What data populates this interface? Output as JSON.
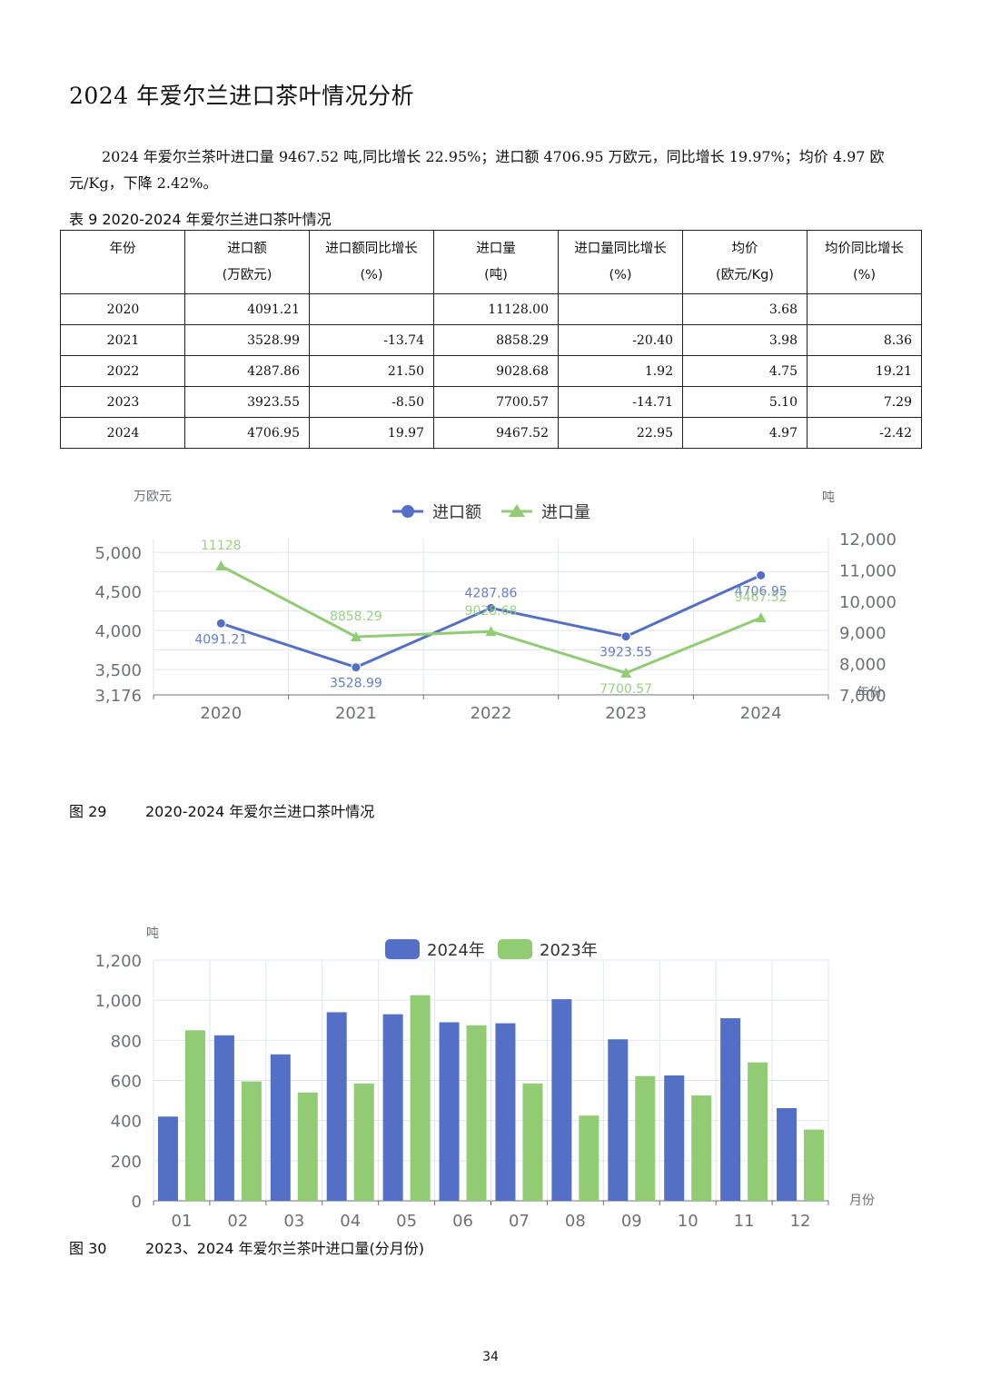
{
  "title": "2024 年爱尔兰进口茶叶情况分析",
  "paragraph": "2024 年爱尔兰茶叶进口量 9467.52 吨,同比增长 22.95%；进口额 4706.95 万欧元，同比增长 19.97%；均价 4.97 欧元/Kg，下降 2.42%。",
  "table": {
    "caption": "表 9  2020-2024 年爱尔兰进口茶叶情况",
    "headers": [
      {
        "line1": "年份",
        "line2": ""
      },
      {
        "line1": "进口额",
        "line2": "(万欧元)"
      },
      {
        "line1": "进口额同比增长",
        "line2": "(%)"
      },
      {
        "line1": "进口量",
        "line2": "(吨)"
      },
      {
        "line1": "进口量同比增长",
        "line2": "(%)"
      },
      {
        "line1": "均价",
        "line2": "(欧元/Kg)"
      },
      {
        "line1": "均价同比增长",
        "line2": "(%)"
      }
    ],
    "rows": [
      [
        "2020",
        "4091.21",
        "",
        "11128.00",
        "",
        "3.68",
        ""
      ],
      [
        "2021",
        "3528.99",
        "-13.74",
        "8858.29",
        "-20.40",
        "3.98",
        "8.36"
      ],
      [
        "2022",
        "4287.86",
        "21.50",
        "9028.68",
        "1.92",
        "4.75",
        "19.21"
      ],
      [
        "2023",
        "3923.55",
        "-8.50",
        "7700.57",
        "-14.71",
        "5.10",
        "7.29"
      ],
      [
        "2024",
        "4706.95",
        "19.97",
        "9467.52",
        "22.95",
        "4.97",
        "-2.42"
      ]
    ]
  },
  "chart_data": [
    {
      "type": "line",
      "x": [
        "2020",
        "2021",
        "2022",
        "2023",
        "2024"
      ],
      "y_left_label": "万欧元",
      "y_right_label": "吨",
      "x_axis_unit": "年份",
      "left_ticks": [
        "5,000",
        "4,500",
        "4,000",
        "3,500",
        "3,176"
      ],
      "right_ticks": [
        "12,000",
        "11,000",
        "10,000",
        "9,000",
        "8,000",
        "7,000"
      ],
      "ylim_left": [
        3176,
        5176
      ],
      "ylim_right": [
        7000,
        12000
      ],
      "series": [
        {
          "name": "进口额",
          "axis": "left",
          "color": "#5470c6",
          "values": [
            4091.21,
            3528.99,
            4287.86,
            3923.55,
            4706.95
          ],
          "labels": [
            "4091.21",
            "3528.99",
            "4287.86",
            "3923.55",
            "4706.95"
          ]
        },
        {
          "name": "进口量",
          "axis": "right",
          "color": "#91cc75",
          "values": [
            11128,
            8858.29,
            9028.68,
            7700.57,
            9467.52
          ],
          "labels": [
            "11128",
            "8858.29",
            "9028.68",
            "7700.57",
            "9467.52"
          ]
        }
      ],
      "legend_position": "top-center",
      "grid": true
    },
    {
      "type": "bar",
      "categories": [
        "01",
        "02",
        "03",
        "04",
        "05",
        "06",
        "07",
        "08",
        "09",
        "10",
        "11",
        "12"
      ],
      "y_label": "吨",
      "x_axis_unit": "月份",
      "y_ticks": [
        "1,200",
        "1,000",
        "800",
        "600",
        "400",
        "200",
        "0"
      ],
      "ylim": [
        0,
        1200
      ],
      "series": [
        {
          "name": "2024年",
          "color": "#5470c6",
          "values": [
            420,
            825,
            730,
            940,
            930,
            890,
            885,
            1005,
            805,
            625,
            910,
            462
          ]
        },
        {
          "name": "2023年",
          "color": "#91cc75",
          "values": [
            850,
            595,
            540,
            585,
            1025,
            875,
            585,
            425,
            622,
            525,
            690,
            355
          ]
        }
      ],
      "legend_position": "top-center",
      "grid": true
    }
  ],
  "figures": [
    {
      "number": "图 29",
      "text": "2020-2024 年爱尔兰进口茶叶情况"
    },
    {
      "number": "图 30",
      "text": "2023、2024 年爱尔兰茶叶进口量(分月份)"
    }
  ],
  "page_number": "34"
}
